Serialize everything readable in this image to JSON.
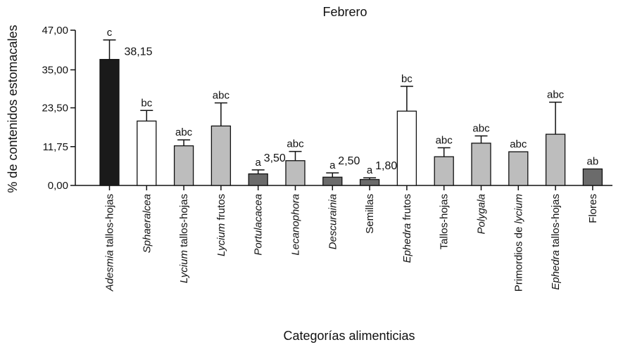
{
  "chart_data": {
    "type": "bar",
    "title": "Febrero",
    "xlabel": "Categorías alimenticias",
    "ylabel": "% de contenidos estomacales",
    "ylim": [
      0,
      47
    ],
    "yticks": [
      "0,00",
      "11,75",
      "23,50",
      "35,00",
      "47,00"
    ],
    "ytick_values": [
      0,
      11.75,
      23.5,
      35,
      47
    ],
    "grid": false,
    "bars": [
      {
        "label": [
          {
            "t": "Adesmia",
            "italic": true
          },
          {
            "t": " tallos-hojas",
            "italic": false
          }
        ],
        "value": 38.15,
        "error": 5.9,
        "color": "#1a1a1a",
        "sig": "c",
        "value_label": "38,15"
      },
      {
        "label": [
          {
            "t": "Sphaeralcea",
            "italic": true
          }
        ],
        "value": 19.5,
        "error": 3.2,
        "color": "#ffffff",
        "sig": "bc",
        "value_label": ""
      },
      {
        "label": [
          {
            "t": "Lycium",
            "italic": true
          },
          {
            "t": " tallos-hojas",
            "italic": false
          }
        ],
        "value": 12.0,
        "error": 1.8,
        "color": "#bdbdbd",
        "sig": "abc",
        "value_label": ""
      },
      {
        "label": [
          {
            "t": "Lycium",
            "italic": true
          },
          {
            "t": " frutos",
            "italic": false
          }
        ],
        "value": 18.0,
        "error": 7.0,
        "color": "#bdbdbd",
        "sig": "abc",
        "value_label": ""
      },
      {
        "label": [
          {
            "t": "Portulacacea",
            "italic": true
          }
        ],
        "value": 3.5,
        "error": 1.2,
        "color": "#6b6b6b",
        "sig": "a",
        "value_label": "3,50"
      },
      {
        "label": [
          {
            "t": "Lecanophora",
            "italic": true
          }
        ],
        "value": 7.5,
        "error": 2.8,
        "color": "#bdbdbd",
        "sig": "abc",
        "value_label": ""
      },
      {
        "label": [
          {
            "t": "Descurainia",
            "italic": true
          }
        ],
        "value": 2.5,
        "error": 1.3,
        "color": "#6b6b6b",
        "sig": "a",
        "value_label": "2,50"
      },
      {
        "label": [
          {
            "t": "Semillas",
            "italic": false
          }
        ],
        "value": 1.8,
        "error": 0.5,
        "color": "#6b6b6b",
        "sig": "a",
        "value_label": "1,80"
      },
      {
        "label": [
          {
            "t": "Ephedra",
            "italic": true
          },
          {
            "t": " frutos",
            "italic": false
          }
        ],
        "value": 22.5,
        "error": 7.5,
        "color": "#ffffff",
        "sig": "bc",
        "value_label": ""
      },
      {
        "label": [
          {
            "t": "Tallos-hojas",
            "italic": false
          }
        ],
        "value": 8.7,
        "error": 2.7,
        "color": "#bdbdbd",
        "sig": "abc",
        "value_label": ""
      },
      {
        "label": [
          {
            "t": "Polygala",
            "italic": true
          }
        ],
        "value": 12.8,
        "error": 2.2,
        "color": "#bdbdbd",
        "sig": "abc",
        "value_label": ""
      },
      {
        "label": [
          {
            "t": "Primordios de ",
            "italic": false
          },
          {
            "t": "lycium",
            "italic": true
          }
        ],
        "value": 10.2,
        "error": 0.0,
        "color": "#bdbdbd",
        "sig": "abc",
        "value_label": ""
      },
      {
        "label": [
          {
            "t": "Ephedra",
            "italic": true
          },
          {
            "t": " tallos-hojas",
            "italic": false
          }
        ],
        "value": 15.5,
        "error": 9.7,
        "color": "#bdbdbd",
        "sig": "abc",
        "value_label": ""
      },
      {
        "label": [
          {
            "t": "Flores",
            "italic": false
          }
        ],
        "value": 5.0,
        "error": 0.0,
        "color": "#6b6b6b",
        "sig": "ab",
        "value_label": ""
      }
    ]
  }
}
